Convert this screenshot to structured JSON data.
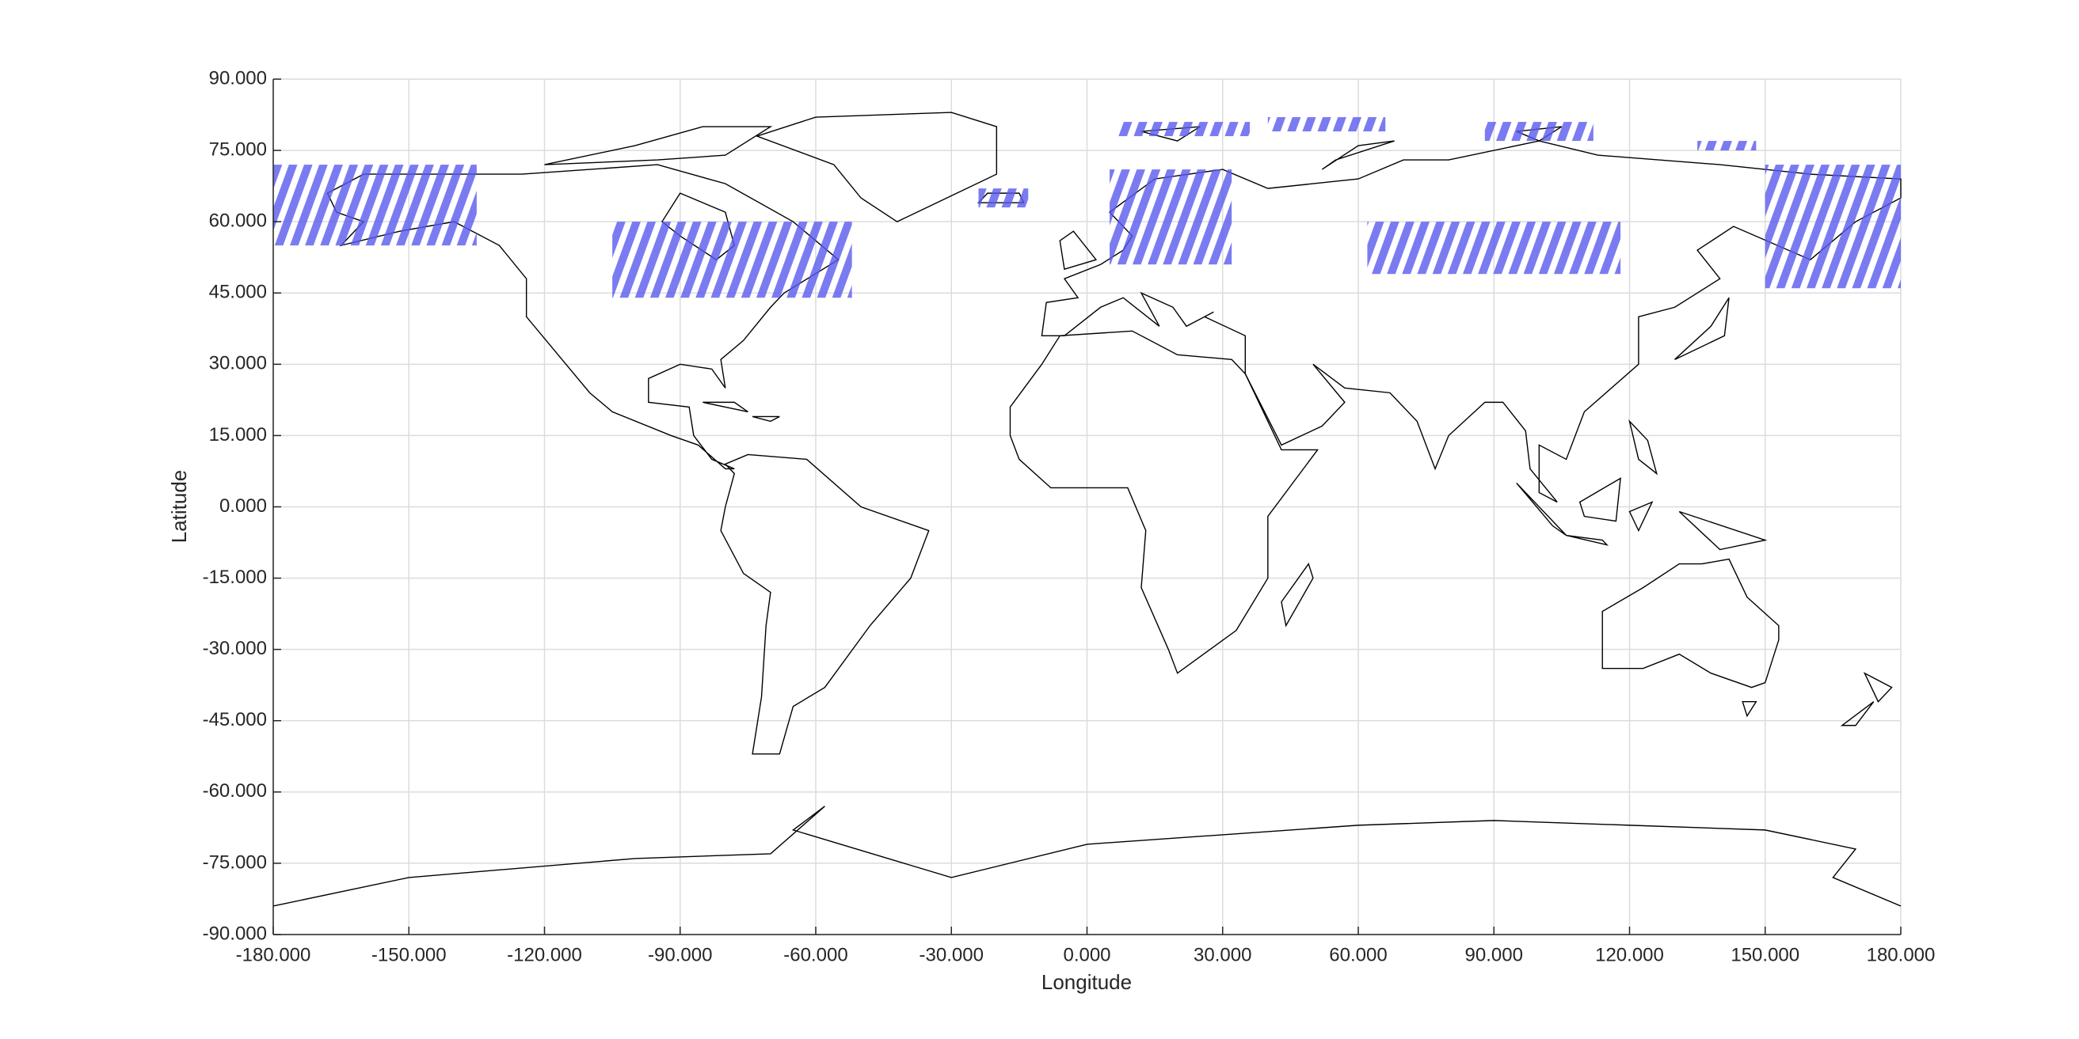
{
  "chart_data": {
    "type": "map",
    "x_label": "Longitude",
    "y_label": "Latitude",
    "xlim": [
      -180,
      180
    ],
    "ylim": [
      -90,
      90
    ],
    "xticks": [
      {
        "value": -180,
        "label": "-180.000"
      },
      {
        "value": -150,
        "label": "-150.000"
      },
      {
        "value": -120,
        "label": "-120.000"
      },
      {
        "value": -90,
        "label": "-90.000"
      },
      {
        "value": -60,
        "label": "-60.000"
      },
      {
        "value": -30,
        "label": "-30.000"
      },
      {
        "value": 0,
        "label": "0.000"
      },
      {
        "value": 30,
        "label": "30.000"
      },
      {
        "value": 60,
        "label": "60.000"
      },
      {
        "value": 90,
        "label": "90.000"
      },
      {
        "value": 120,
        "label": "120.000"
      },
      {
        "value": 150,
        "label": "150.000"
      },
      {
        "value": 180,
        "label": "180.000"
      }
    ],
    "yticks": [
      {
        "value": -90,
        "label": "-90.000"
      },
      {
        "value": -75,
        "label": "-75.000"
      },
      {
        "value": -60,
        "label": "-60.000"
      },
      {
        "value": -45,
        "label": "-45.000"
      },
      {
        "value": -30,
        "label": "-30.000"
      },
      {
        "value": -15,
        "label": "-15.000"
      },
      {
        "value": 0,
        "label": "0.000"
      },
      {
        "value": 15,
        "label": "15.000"
      },
      {
        "value": 30,
        "label": "30.000"
      },
      {
        "value": 45,
        "label": "45.000"
      },
      {
        "value": 60,
        "label": "60.000"
      },
      {
        "value": 75,
        "label": "75.000"
      },
      {
        "value": 90,
        "label": "90.000"
      }
    ],
    "grid": true,
    "color": "#5a5aee",
    "regions": [
      {
        "lon": [
          -180,
          -135
        ],
        "lat": [
          55,
          72
        ]
      },
      {
        "lon": [
          -105,
          -52
        ],
        "lat": [
          44,
          60
        ]
      },
      {
        "lon": [
          5,
          32
        ],
        "lat": [
          51,
          71
        ]
      },
      {
        "lon": [
          7,
          36
        ],
        "lat": [
          78,
          81
        ]
      },
      {
        "lon": [
          40,
          66
        ],
        "lat": [
          79,
          82
        ]
      },
      {
        "lon": [
          88,
          112
        ],
        "lat": [
          77,
          81
        ]
      },
      {
        "lon": [
          62,
          118
        ],
        "lat": [
          49,
          60
        ]
      },
      {
        "lon": [
          150,
          180
        ],
        "lat": [
          46,
          72
        ]
      },
      {
        "lon": [
          135,
          148
        ],
        "lat": [
          75,
          77
        ]
      },
      {
        "lon": [
          -24,
          -13
        ],
        "lat": [
          63,
          67
        ]
      }
    ]
  }
}
